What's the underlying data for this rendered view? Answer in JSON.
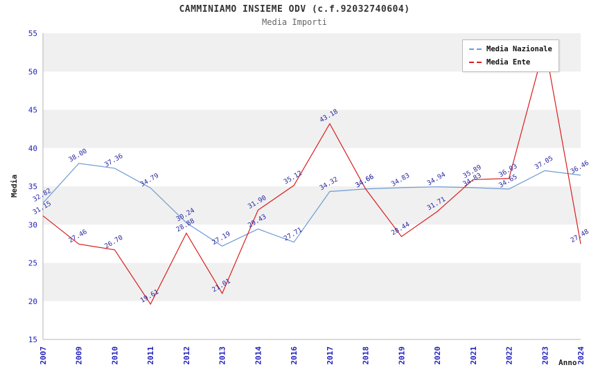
{
  "title": "CAMMINIAMO INSIEME ODV (c.f.92032740604)",
  "subtitle": "Media Importi",
  "colors": {
    "nazionale": "#6c9bd2",
    "ente": "#d81e1e",
    "value_label": "#2929a3",
    "tick": "#2222bb",
    "band": "#f0f0f0",
    "axis": "#b4b4b4"
  },
  "legend": {
    "items": [
      {
        "label": "Media Nazionale",
        "color": "#6c9bd2"
      },
      {
        "label": "Media Ente",
        "color": "#d81e1e"
      }
    ]
  },
  "chart_data": {
    "type": "line",
    "title": "CAMMINIAMO INSIEME ODV (c.f.92032740604)",
    "subtitle": "Media Importi",
    "xlabel": "Anno",
    "ylabel": "Media",
    "ylim": [
      15,
      55
    ],
    "ytick_step": 5,
    "grid_bands": "alternating gray bands every 5 units",
    "legend_position": "top-right inside plot",
    "x": [
      "2007",
      "2009",
      "2010",
      "2011",
      "2012",
      "2013",
      "2014",
      "2016",
      "2017",
      "2018",
      "2019",
      "2020",
      "2021",
      "2022",
      "2023",
      "2024"
    ],
    "series": [
      {
        "name": "Media Nazionale",
        "color": "#6c9bd2",
        "values": [
          32.82,
          38.0,
          37.36,
          34.79,
          30.24,
          27.19,
          29.43,
          27.71,
          34.32,
          34.66,
          34.83,
          34.94,
          34.83,
          34.65,
          37.05,
          36.46
        ],
        "labels": [
          "32.82",
          "38.00",
          "37.36",
          "34.79",
          "30.24",
          "27.19",
          "29.43",
          "27.71",
          "34.32",
          "34.66",
          "34.83",
          "34.94",
          "34.83",
          "34.65",
          "37.05",
          "36.46"
        ]
      },
      {
        "name": "Media Ente",
        "color": "#d81e1e",
        "values": [
          31.15,
          27.46,
          26.7,
          19.61,
          28.88,
          21.01,
          31.9,
          35.12,
          43.18,
          34.66,
          28.44,
          31.71,
          35.89,
          36.03,
          53.5,
          27.48
        ],
        "labels": [
          "31.15",
          "27.46",
          "26.70",
          "19.61",
          "28.88",
          "21.01",
          "31.90",
          "35.12",
          "43.18",
          "34.66",
          "28.44",
          "31.71",
          "35.89",
          "36.03",
          "",
          "27.48"
        ]
      }
    ]
  }
}
